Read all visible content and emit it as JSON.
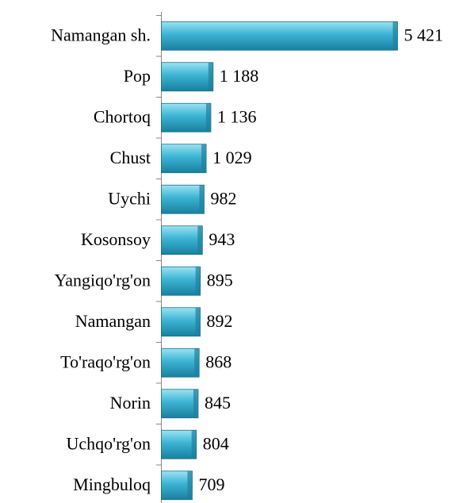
{
  "chart_data": {
    "type": "bar",
    "orientation": "horizontal",
    "categories": [
      "Namangan sh.",
      "Pop",
      "Chortoq",
      "Chust",
      "Uychi",
      "Kosonsoy",
      "Yangiqo'rg'on",
      "Namangan",
      "To'raqo'rg'on",
      "Norin",
      "Uchqo'rg'on",
      "Mingbuloq"
    ],
    "values": [
      5421,
      1188,
      1136,
      1029,
      982,
      943,
      895,
      892,
      868,
      845,
      804,
      709
    ],
    "value_labels": [
      "5 421",
      "1 188",
      "1 136",
      "1 029",
      "982",
      "943",
      "895",
      "892",
      "868",
      "845",
      "804",
      "709"
    ],
    "color": "#3bb3d3"
  }
}
